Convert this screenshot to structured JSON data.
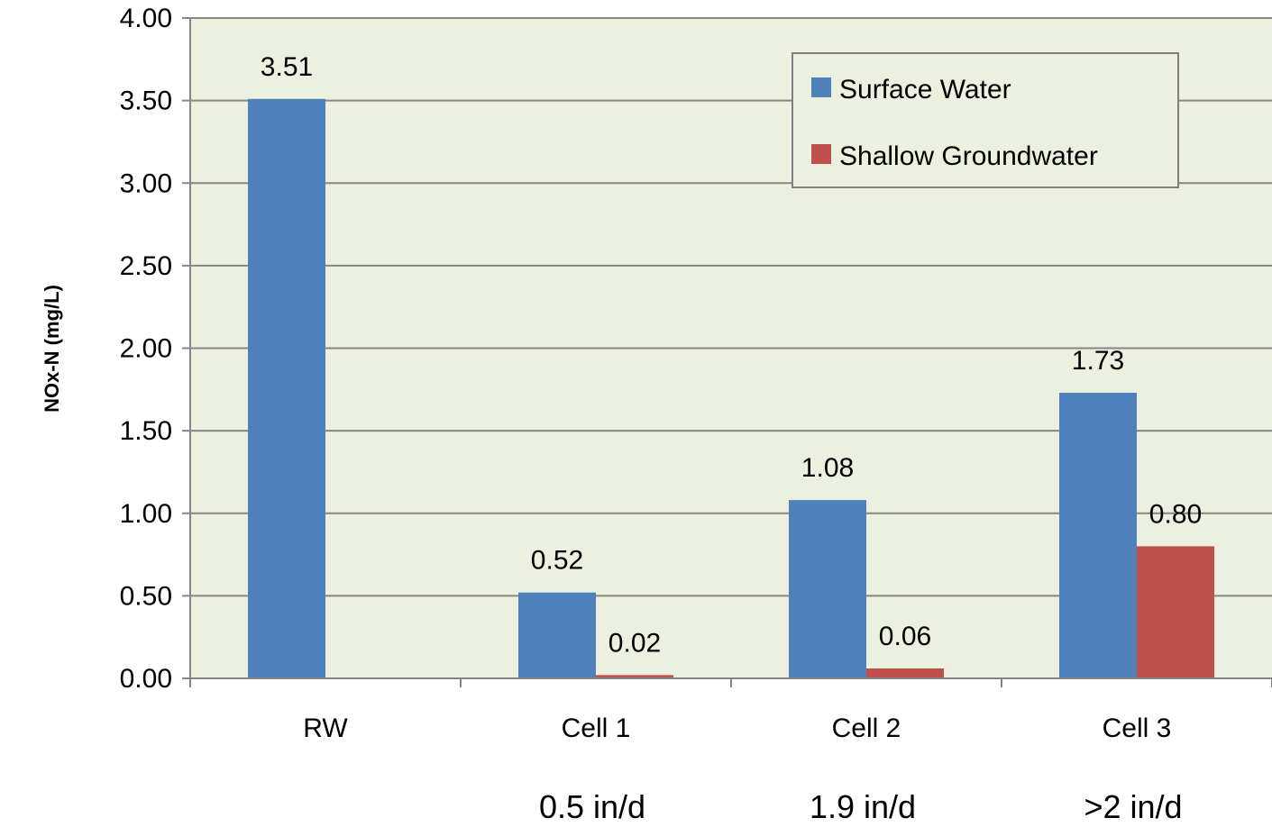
{
  "chart_data": {
    "type": "bar",
    "categories": [
      "RW",
      "Cell 1",
      "Cell 2",
      "Cell 3"
    ],
    "sublabels": [
      "",
      "0.5 in/d",
      "1.9 in/d",
      ">2 in/d"
    ],
    "series": [
      {
        "name": "Surface Water",
        "color": "#4f81bd",
        "values": [
          3.51,
          0.52,
          1.08,
          1.73
        ],
        "labels": [
          "3.51",
          "0.52",
          "1.08",
          "1.73"
        ]
      },
      {
        "name": "Shallow Groundwater",
        "color": "#c0504d",
        "values": [
          null,
          0.02,
          0.06,
          0.8
        ],
        "labels": [
          "",
          "0.02",
          "0.06",
          "0.80"
        ]
      }
    ],
    "ylabel": "NOx-N (mg/L)",
    "xlabel": "",
    "title": "",
    "ylim": [
      0,
      4
    ],
    "yticks": [
      "0.00",
      "0.50",
      "1.00",
      "1.50",
      "2.00",
      "2.50",
      "3.00",
      "3.50",
      "4.00"
    ],
    "grid": true,
    "legend_position": "top-right",
    "plot_background": "#ebf1de"
  }
}
